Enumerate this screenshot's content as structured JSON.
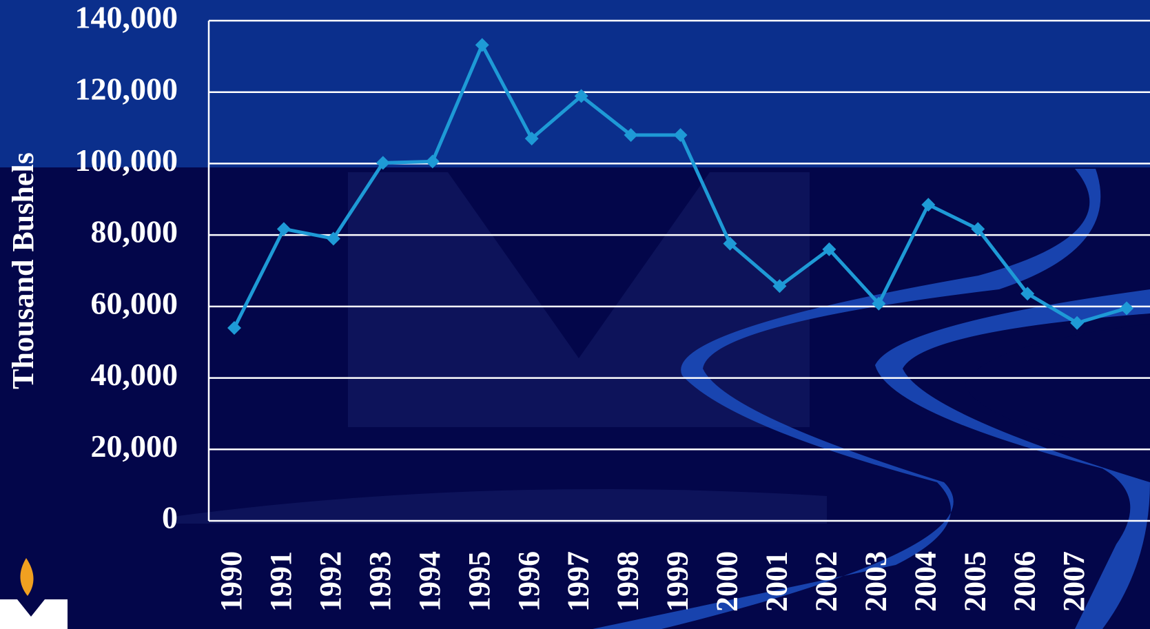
{
  "chart_data": {
    "type": "line",
    "y_label": "Thousand Bushels",
    "categories": [
      "1990",
      "1991",
      "1992",
      "1993",
      "1994",
      "1995",
      "1996",
      "1997",
      "1998",
      "1999",
      "2000",
      "2001",
      "2002",
      "2003",
      "2004",
      "2005",
      "2006",
      "2007",
      null
    ],
    "series": [
      {
        "color": "#1e9ad6",
        "values": [
          54000,
          81700,
          79000,
          100200,
          100600,
          133200,
          107000,
          118900,
          108000,
          108000,
          77600,
          65700,
          76000,
          60800,
          88500,
          81700,
          63600,
          55400,
          59500
        ]
      }
    ],
    "ylim": [
      0,
      140000
    ],
    "yticks": [
      0,
      {
        "value": 20000,
        "label": "20,000"
      },
      {
        "value": 40000,
        "label": "40,000"
      },
      {
        "value": 60000,
        "label": "60,000"
      },
      {
        "value": 80000,
        "label": "80,000"
      },
      {
        "value": 100000,
        "label": "100,000"
      },
      {
        "value": 120000,
        "label": "120,000"
      },
      {
        "value": 140000,
        "label": "140,000"
      }
    ],
    "grid": true
  }
}
